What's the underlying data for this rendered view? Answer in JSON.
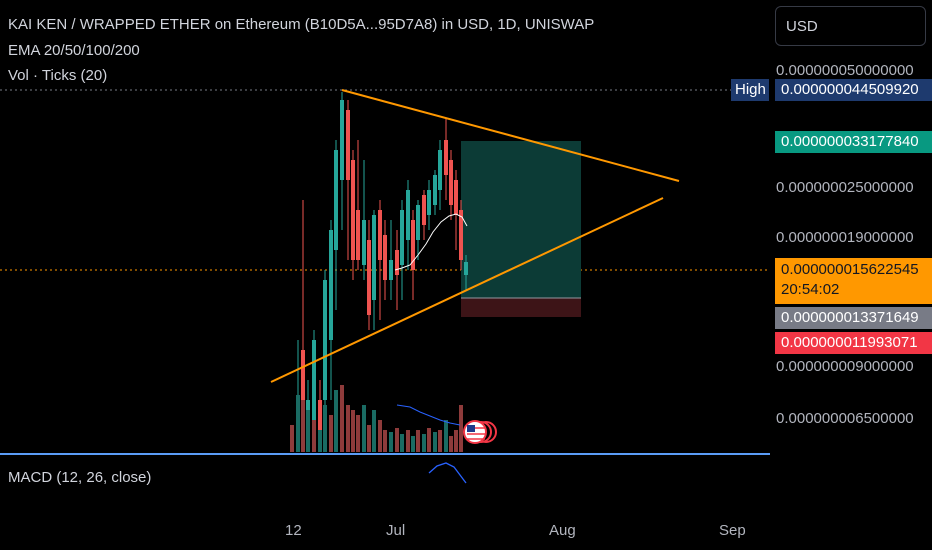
{
  "header": {
    "title": "KAI KEN / WRAPPED ETHER on Ethereum (B10D5A...95D7A8) in USD, 1D, UNISWAP",
    "indicator_ema": "EMA 20/50/100/200",
    "indicator_vol": "Vol · Ticks (20)",
    "indicator_macd": "MACD (12, 26, close)"
  },
  "currency": {
    "label": "USD"
  },
  "price_axis": {
    "labels": [
      "0.000000050000000",
      "0.000000025000000",
      "0.000000019000000",
      "0.000000009000000",
      "0.000000006500000"
    ],
    "high_label": "High",
    "high_value": "0.000000044509920",
    "target_value": "0.000000033177840",
    "current_value": "0.000000015622545",
    "countdown": "20:54:02",
    "gray_value": "0.000000013371649",
    "stop_value": "0.000000011993071"
  },
  "time_axis": {
    "labels": [
      "12",
      "Jul",
      "Aug",
      "Sep"
    ]
  },
  "colors": {
    "up": "#26a69a",
    "down": "#ef5350",
    "vol_up": "#1a6b63",
    "vol_down": "#8e3b3b",
    "trendline": "#ff9800",
    "ema": "#ffffff",
    "target_zone": "#0c3b36",
    "stop_zone": "#3d1417",
    "high_tag": "#1e3a6e",
    "target_tag": "#089981",
    "current_tag": "#ff9800",
    "gray_tag": "#787b86",
    "stop_tag": "#f23645",
    "separator": "#2962ff",
    "macd": "#2962ff"
  },
  "icons": {
    "flag": "us-flag-icon"
  }
}
